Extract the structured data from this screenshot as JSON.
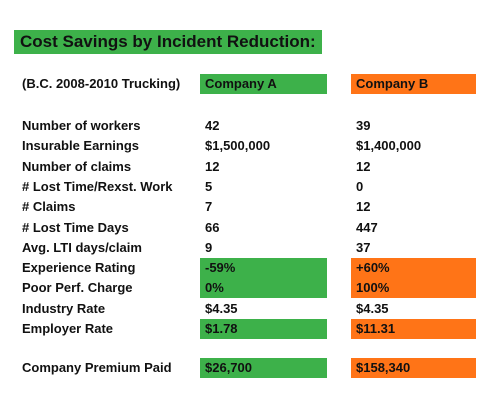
{
  "title": "Cost Savings by Incident Reduction:",
  "header": {
    "label": "(B.C. 2008-2010 Trucking)",
    "company_a": "Company A",
    "company_b": "Company B"
  },
  "colors": {
    "green": "#3db14a",
    "orange": "#ff7417"
  },
  "rows": [
    {
      "label": "Number of workers",
      "a": "42",
      "b": "39",
      "highlight": false
    },
    {
      "label": "Insurable Earnings",
      "a": "$1,500,000",
      "b": "$1,400,000",
      "highlight": false
    },
    {
      "label": "Number of claims",
      "a": "12",
      "b": "12",
      "highlight": false
    },
    {
      "label": "# Lost Time/Rexst. Work",
      "a": "5",
      "b": "0",
      "highlight": false
    },
    {
      "label": "# Claims",
      "a": "7",
      "b": "12",
      "highlight": false
    },
    {
      "label": "# Lost Time Days",
      "a": "66",
      "b": "447",
      "highlight": false
    },
    {
      "label": "Avg. LTI days/claim",
      "a": "9",
      "b": "37",
      "highlight": false
    },
    {
      "label": "Experience Rating",
      "a": "-59%",
      "b": "+60%",
      "highlight": true
    },
    {
      "label": "Poor Perf. Charge",
      "a": "0%",
      "b": "100%",
      "highlight": true
    },
    {
      "label": "Industry Rate",
      "a": "$4.35",
      "b": "$4.35",
      "highlight": false
    },
    {
      "label": "Employer Rate",
      "a": "$1.78",
      "b": "$11.31",
      "highlight": true
    }
  ],
  "total": {
    "label": "Company Premium Paid",
    "a": "$26,700",
    "b": "$158,340"
  }
}
